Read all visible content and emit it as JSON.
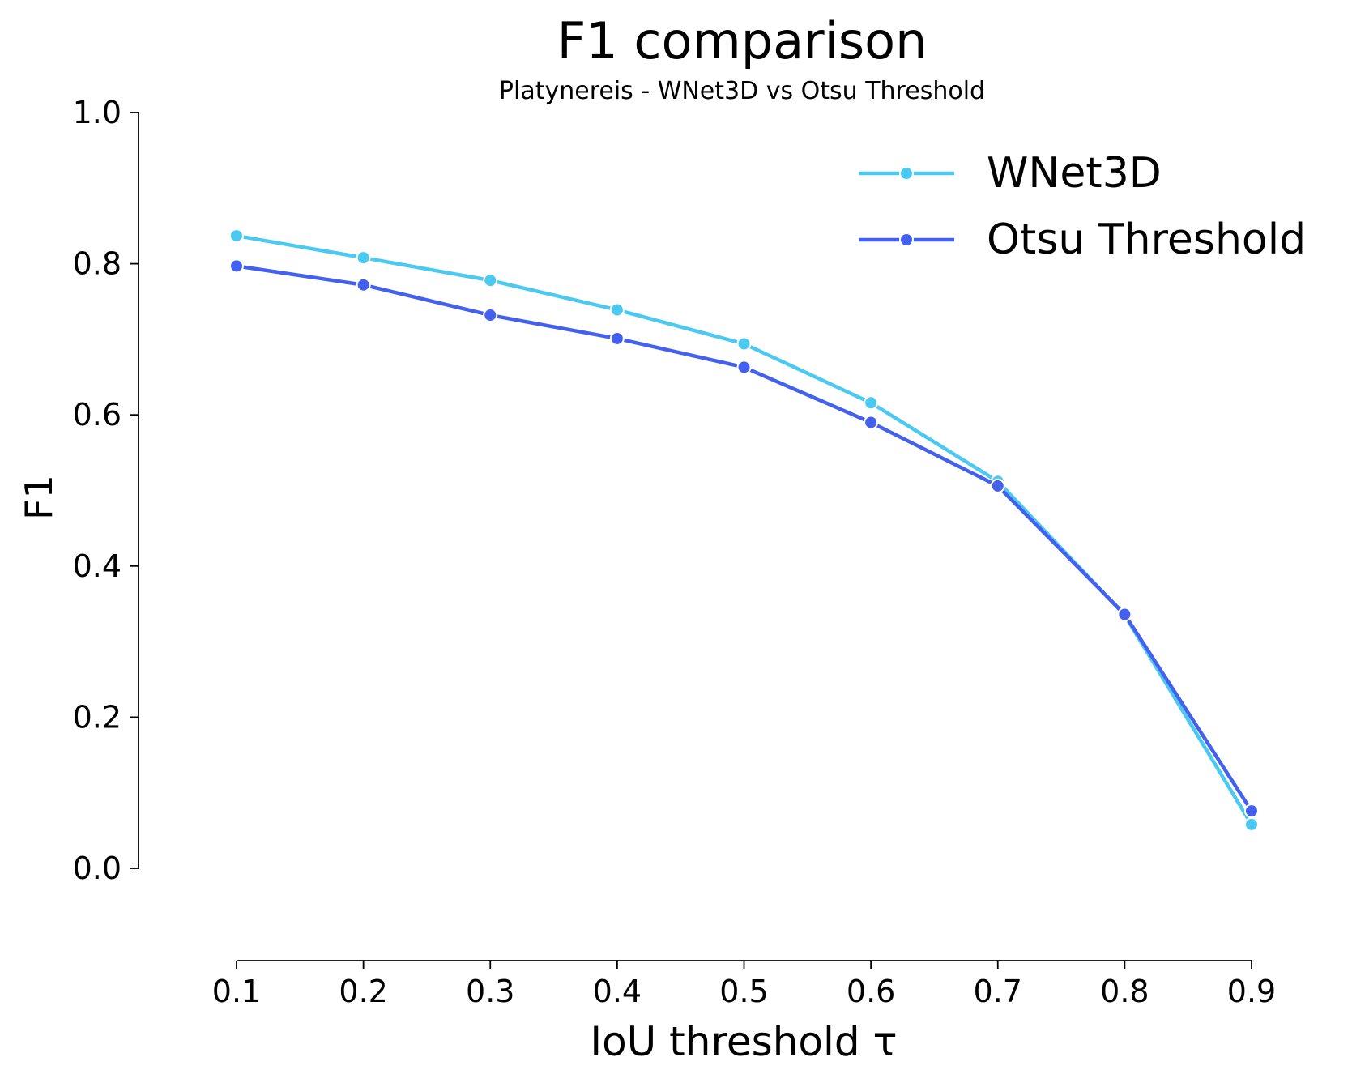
{
  "chart_data": {
    "type": "line",
    "title": "F1 comparison",
    "subtitle": "Platynereis - WNet3D vs Otsu Threshold",
    "xlabel": "IoU threshold τ",
    "ylabel": "F1",
    "x": [
      0.1,
      0.2,
      0.3,
      0.4,
      0.5,
      0.6,
      0.7,
      0.8,
      0.9
    ],
    "x_ticks": [
      "0.1",
      "0.2",
      "0.3",
      "0.4",
      "0.5",
      "0.6",
      "0.7",
      "0.8",
      "0.9"
    ],
    "y_ticks": [
      "0.0",
      "0.2",
      "0.4",
      "0.6",
      "0.8",
      "1.0"
    ],
    "ylim": [
      0,
      1
    ],
    "grid": false,
    "legend_position": "top-right",
    "series": [
      {
        "name": "WNet3D",
        "color": "#4CC9F0",
        "values": [
          0.837,
          0.808,
          0.778,
          0.739,
          0.694,
          0.616,
          0.512,
          0.335,
          0.058
        ]
      },
      {
        "name": "Otsu Threshold",
        "color": "#4361EE",
        "values": [
          0.797,
          0.772,
          0.732,
          0.701,
          0.663,
          0.59,
          0.506,
          0.336,
          0.076
        ]
      }
    ]
  }
}
